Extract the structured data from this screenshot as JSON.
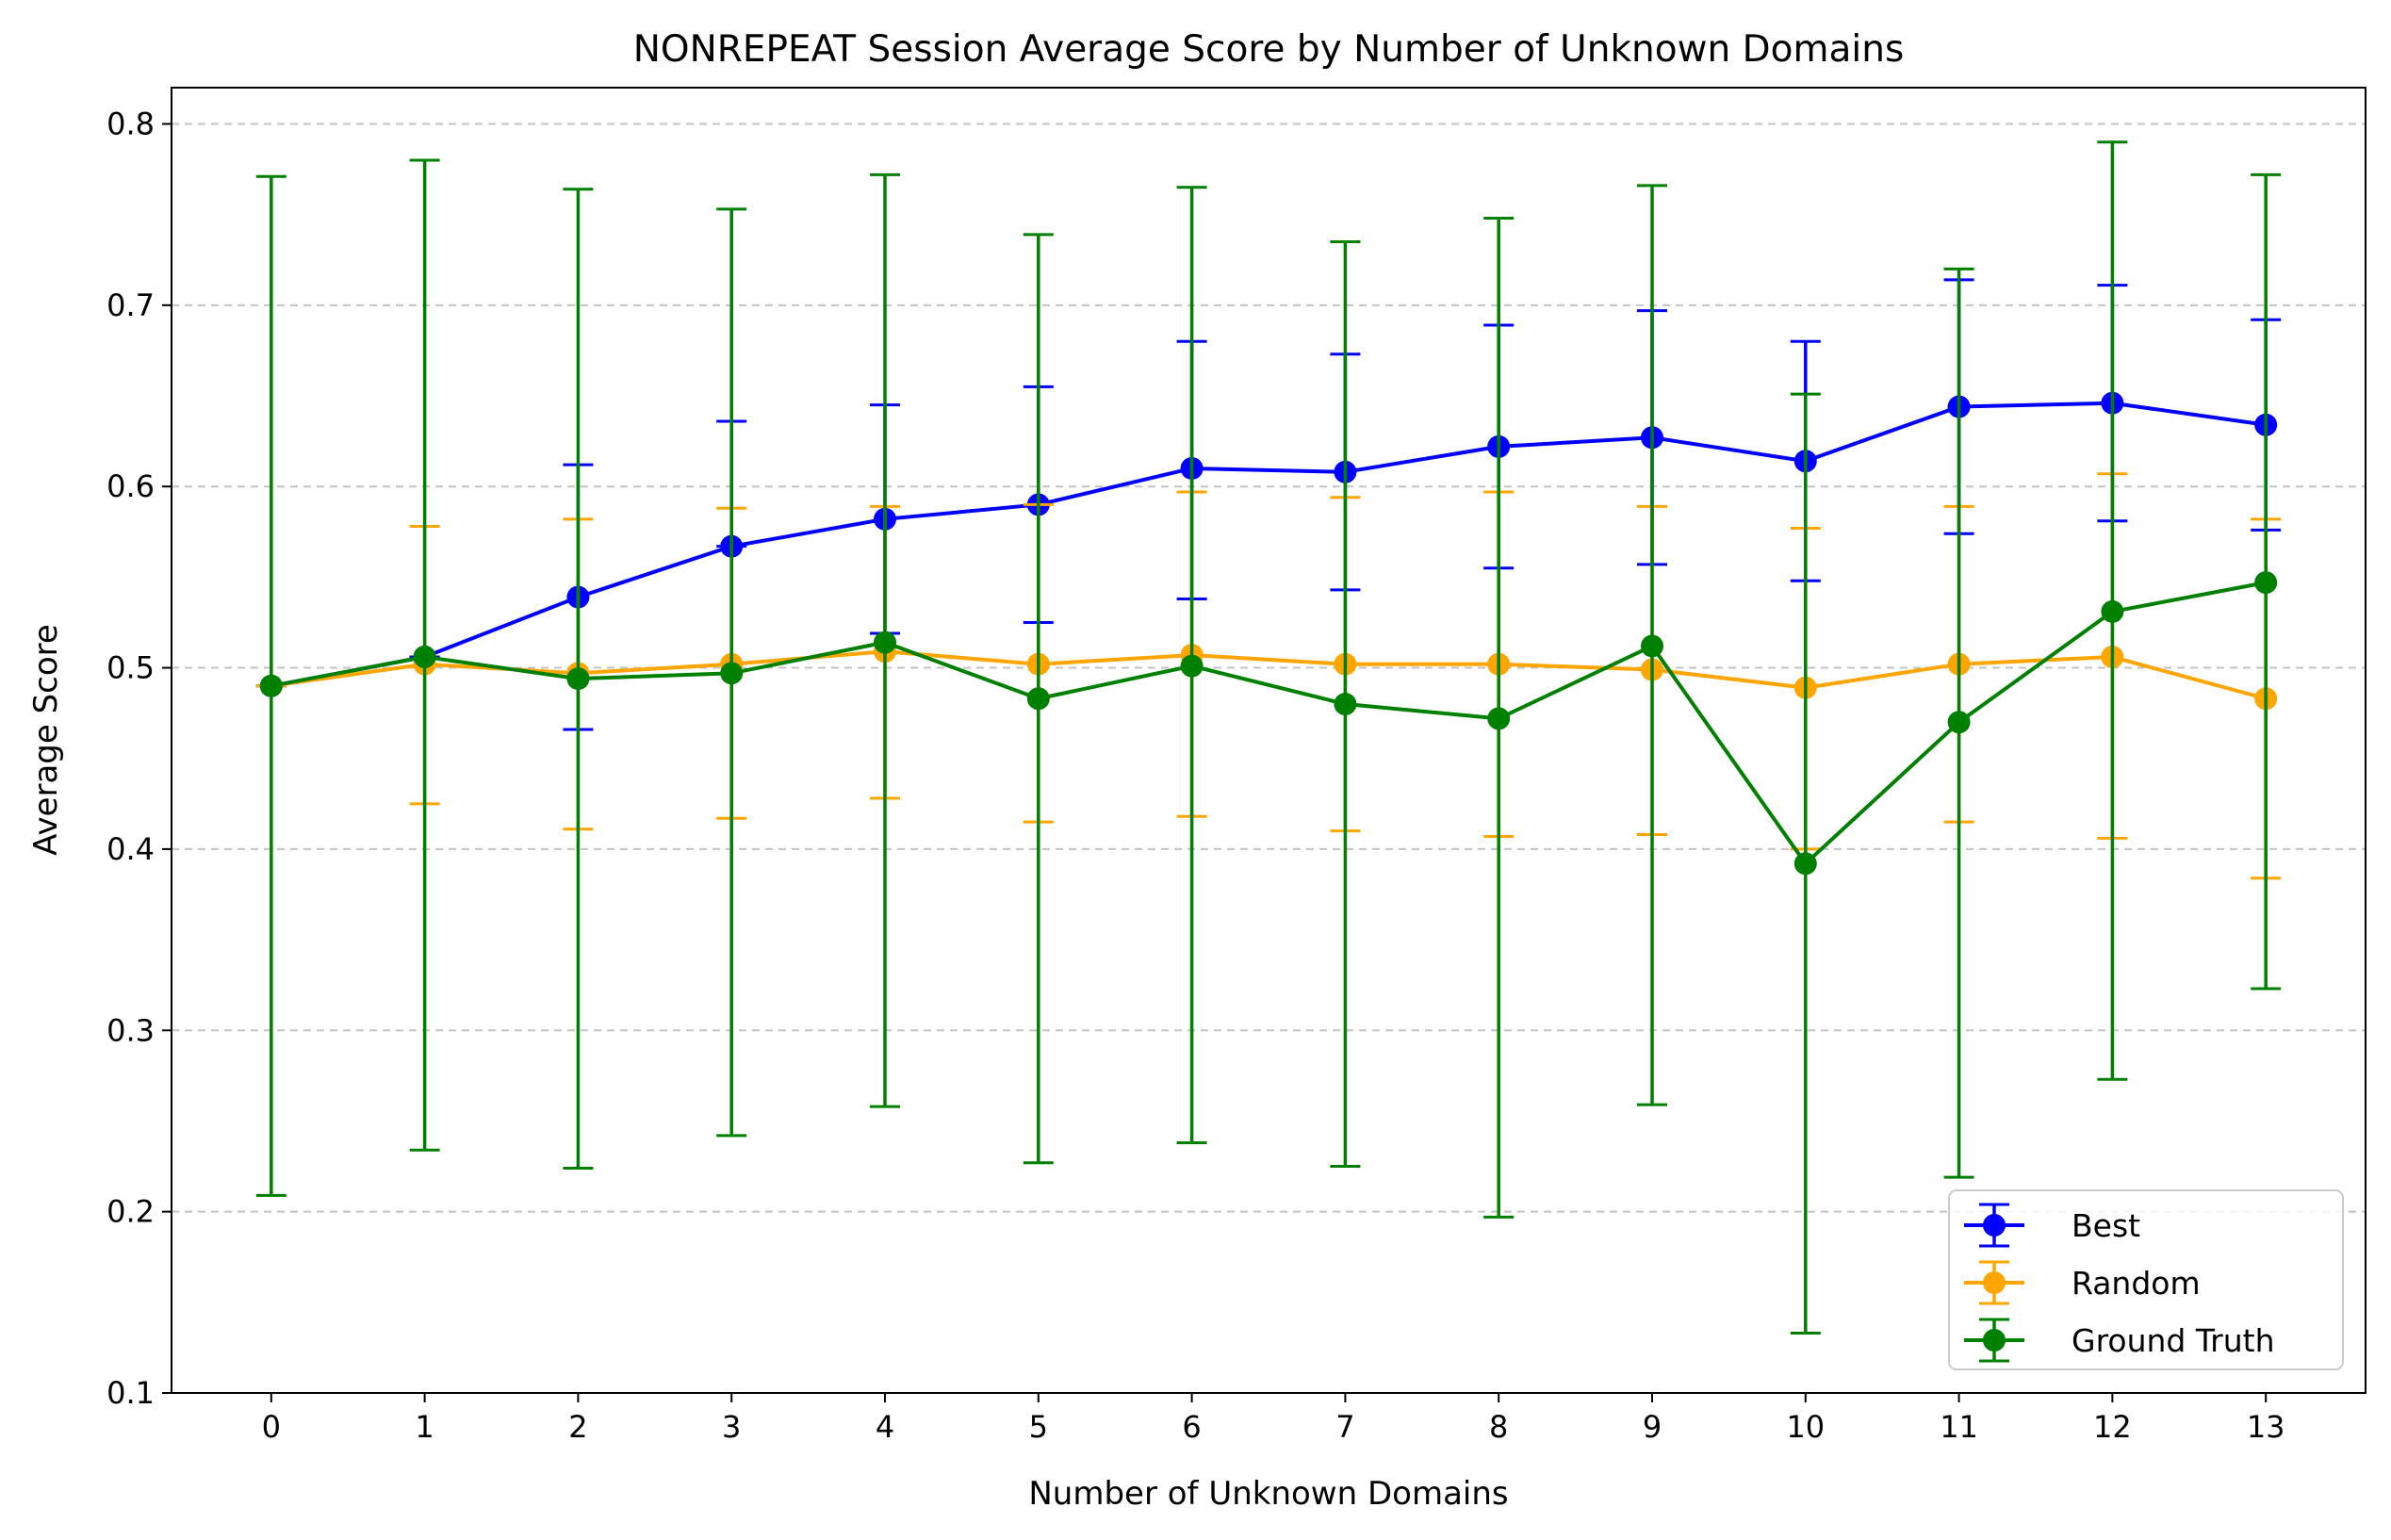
{
  "chart_data": {
    "type": "line",
    "title": "NONREPEAT Session Average Score by Number of Unknown Domains",
    "xlabel": "Number of Unknown Domains",
    "ylabel": "Average Score",
    "x": [
      0,
      1,
      2,
      3,
      4,
      5,
      6,
      7,
      8,
      9,
      10,
      11,
      12,
      13
    ],
    "xlim": [
      -0.65,
      13.65
    ],
    "ylim": [
      0.1,
      0.82
    ],
    "yticks": [
      0.1,
      0.2,
      0.3,
      0.4,
      0.5,
      0.6,
      0.7,
      0.8
    ],
    "ytick_labels": [
      "0.1",
      "0.2",
      "0.3",
      "0.4",
      "0.5",
      "0.6",
      "0.7",
      "0.8"
    ],
    "grid": "y-dashed",
    "legend_position": "lower right",
    "series": [
      {
        "name": "Best",
        "color": "#0000ff",
        "values": [
          0.49,
          0.506,
          0.539,
          0.567,
          0.582,
          0.59,
          0.61,
          0.608,
          0.622,
          0.627,
          0.614,
          0.644,
          0.646,
          0.634
        ],
        "err_low": [
          0.49,
          0.506,
          0.466,
          0.567,
          0.519,
          0.525,
          0.538,
          0.543,
          0.555,
          0.557,
          0.548,
          0.574,
          0.581,
          0.576
        ],
        "err_high": [
          0.49,
          0.506,
          0.612,
          0.636,
          0.645,
          0.655,
          0.68,
          0.673,
          0.689,
          0.697,
          0.68,
          0.714,
          0.711,
          0.692
        ]
      },
      {
        "name": "Random",
        "color": "#ffa500",
        "values": [
          0.49,
          0.502,
          0.497,
          0.502,
          0.509,
          0.502,
          0.507,
          0.502,
          0.502,
          0.499,
          0.489,
          0.502,
          0.506,
          0.483
        ],
        "err_low": [
          0.49,
          0.425,
          0.411,
          0.417,
          0.428,
          0.415,
          0.418,
          0.41,
          0.407,
          0.408,
          0.4,
          0.415,
          0.406,
          0.384
        ],
        "err_high": [
          0.49,
          0.578,
          0.582,
          0.588,
          0.589,
          0.59,
          0.597,
          0.594,
          0.597,
          0.589,
          0.577,
          0.589,
          0.607,
          0.582
        ]
      },
      {
        "name": "Ground Truth",
        "color": "#008000",
        "values": [
          0.49,
          0.506,
          0.494,
          0.497,
          0.514,
          0.483,
          0.501,
          0.48,
          0.472,
          0.512,
          0.392,
          0.47,
          0.531,
          0.547
        ],
        "err_low": [
          0.209,
          0.234,
          0.224,
          0.242,
          0.258,
          0.227,
          0.238,
          0.225,
          0.197,
          0.259,
          0.133,
          0.219,
          0.273,
          0.323
        ],
        "err_high": [
          0.771,
          0.78,
          0.764,
          0.753,
          0.772,
          0.739,
          0.765,
          0.735,
          0.748,
          0.766,
          0.651,
          0.72,
          0.79,
          0.772
        ]
      }
    ]
  }
}
